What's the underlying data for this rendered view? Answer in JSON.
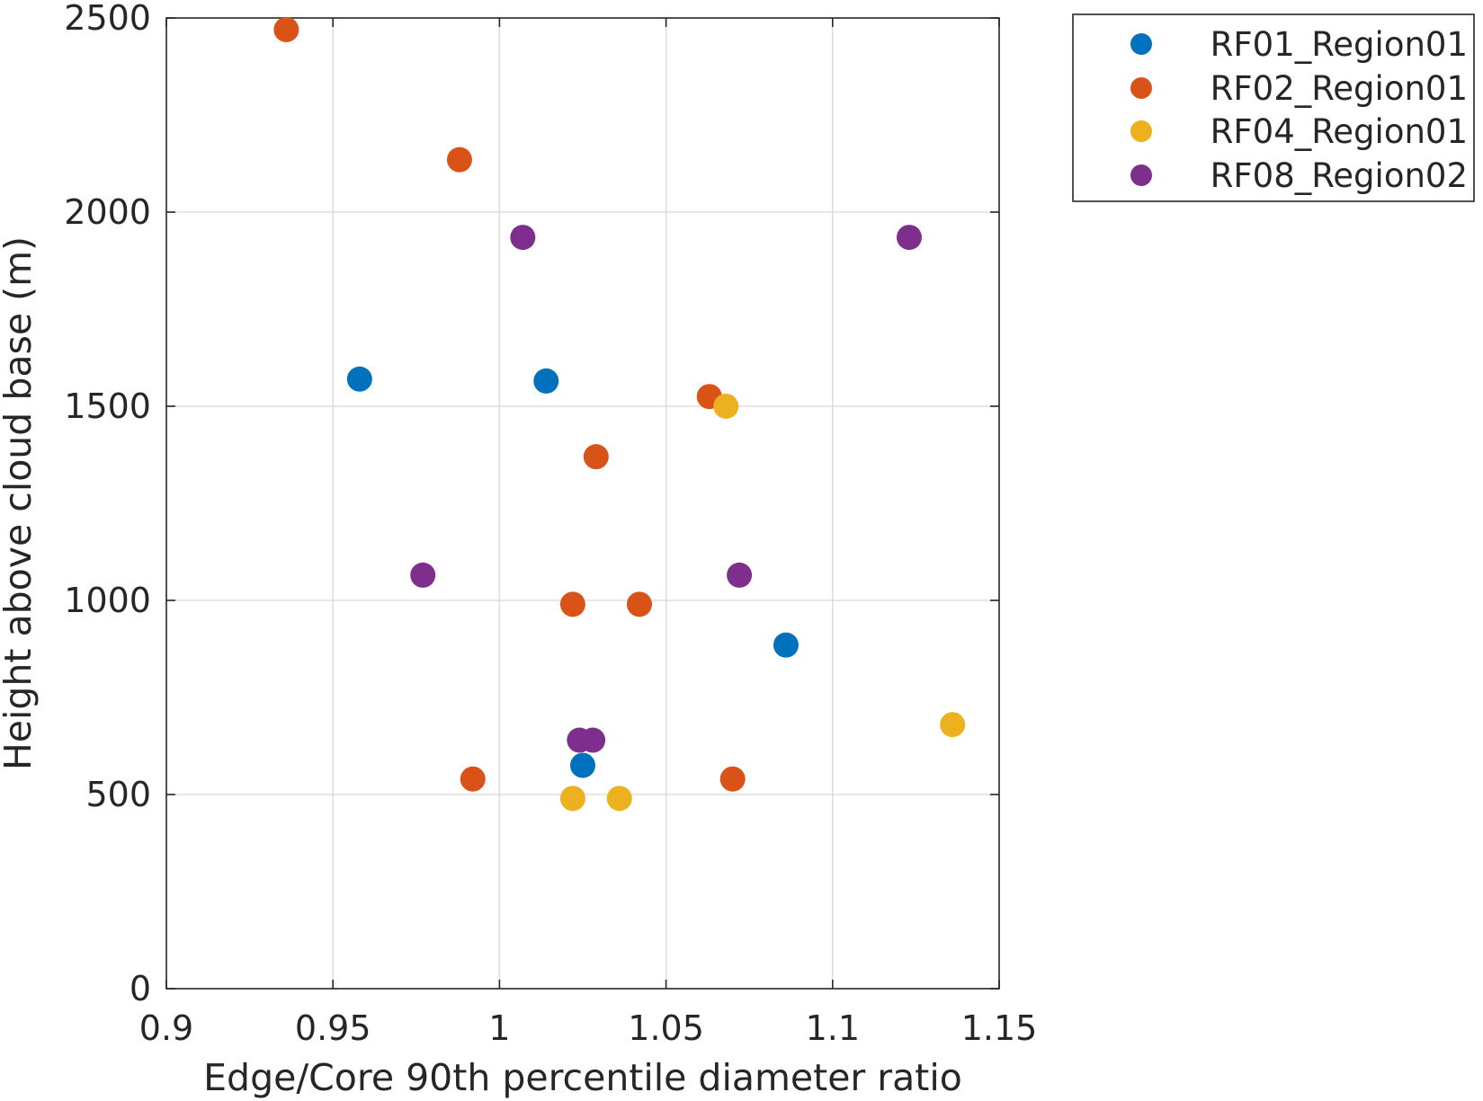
{
  "chart_data": {
    "type": "scatter",
    "xlabel": "Edge/Core 90th percentile diameter ratio",
    "ylabel": "Height above cloud base (m)",
    "xlim": [
      0.9,
      1.15
    ],
    "ylim": [
      0,
      2500
    ],
    "xticks": [
      0.9,
      0.95,
      1,
      1.05,
      1.1,
      1.15
    ],
    "xtick_labels": [
      "0.9",
      "0.95",
      "1",
      "1.05",
      "1.1",
      "1.15"
    ],
    "yticks": [
      0,
      500,
      1000,
      1500,
      2000,
      2500
    ],
    "ytick_labels": [
      "0",
      "500",
      "1000",
      "1500",
      "2000",
      "2500"
    ],
    "grid": true,
    "legend_position": "outside-top-right",
    "series": [
      {
        "name": "RF01_Region01",
        "color": "#0072BD",
        "points": [
          [
            0.958,
            1570
          ],
          [
            1.014,
            1565
          ],
          [
            1.086,
            885
          ],
          [
            1.025,
            575
          ]
        ]
      },
      {
        "name": "RF02_Region01",
        "color": "#D95319",
        "points": [
          [
            0.936,
            2470
          ],
          [
            0.988,
            2135
          ],
          [
            1.063,
            1525
          ],
          [
            1.029,
            1370
          ],
          [
            1.022,
            990
          ],
          [
            1.042,
            990
          ],
          [
            0.992,
            540
          ],
          [
            1.07,
            540
          ]
        ]
      },
      {
        "name": "RF04_Region01",
        "color": "#EDB120",
        "points": [
          [
            1.068,
            1500
          ],
          [
            1.136,
            680
          ],
          [
            1.022,
            490
          ],
          [
            1.036,
            490
          ]
        ]
      },
      {
        "name": "RF08_Region02",
        "color": "#7E2F8E",
        "points": [
          [
            1.007,
            1935
          ],
          [
            1.123,
            1935
          ],
          [
            0.977,
            1065
          ],
          [
            1.072,
            1065
          ],
          [
            1.024,
            640
          ],
          [
            1.028,
            640
          ]
        ]
      }
    ]
  }
}
